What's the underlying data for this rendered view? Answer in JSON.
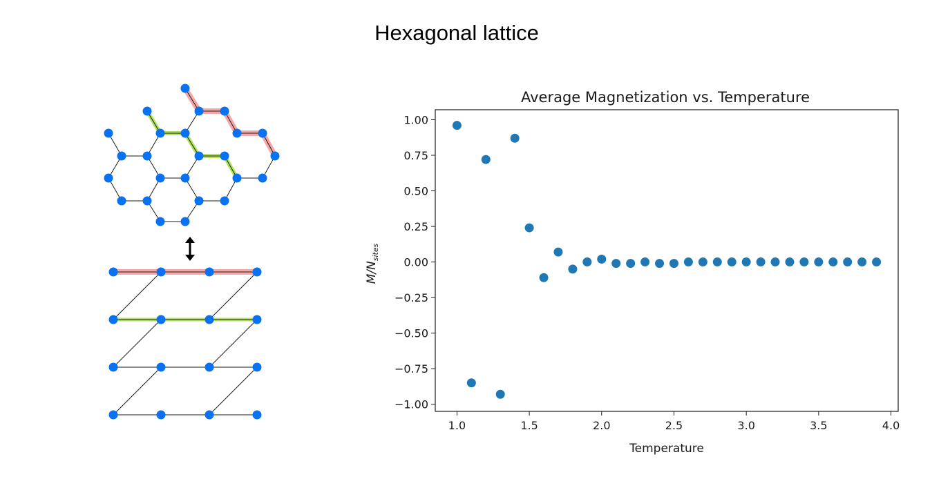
{
  "slide": {
    "title": "Hexagonal lattice"
  },
  "colors": {
    "lattice_node": "#0a72f0",
    "lattice_edge": "#1a1a1a",
    "path_red": "#f08a8a",
    "path_green": "#a8e04a",
    "scatter_point": "#1f77b4",
    "axis": "#1a1a1a"
  },
  "diagram": {
    "arrow_icon": "up-down-arrow-icon"
  },
  "chart_data": {
    "type": "scatter",
    "title": "Average Magnetization vs. Temperature",
    "xlabel": "Temperature",
    "ylabel": "M/N",
    "ylabel_sub": "sites",
    "xlim": [
      0.85,
      4.05
    ],
    "ylim": [
      -1.05,
      1.07
    ],
    "xticks": [
      1.0,
      1.5,
      2.0,
      2.5,
      3.0,
      3.5,
      4.0
    ],
    "xtick_labels": [
      "1.0",
      "1.5",
      "2.0",
      "2.5",
      "3.0",
      "3.5",
      "4.0"
    ],
    "yticks": [
      1.0,
      0.75,
      0.5,
      0.25,
      0.0,
      -0.25,
      -0.5,
      -0.75,
      -1.0
    ],
    "ytick_labels": [
      "1.00",
      "0.75",
      "0.50",
      "0.25",
      "0.00",
      "−0.25",
      "−0.50",
      "−0.75",
      "−1.00"
    ],
    "grid": false,
    "x": [
      1.0,
      1.1,
      1.2,
      1.3,
      1.4,
      1.5,
      1.6,
      1.7,
      1.8,
      1.9,
      2.0,
      2.1,
      2.2,
      2.3,
      2.4,
      2.5,
      2.6,
      2.7,
      2.8,
      2.9,
      3.0,
      3.1,
      3.2,
      3.3,
      3.4,
      3.5,
      3.6,
      3.7,
      3.8,
      3.9
    ],
    "y": [
      0.96,
      -0.85,
      0.72,
      -0.93,
      0.87,
      0.24,
      -0.11,
      0.07,
      -0.05,
      0.0,
      0.02,
      -0.01,
      -0.01,
      0.0,
      -0.01,
      -0.01,
      0.0,
      0.0,
      0.0,
      0.0,
      0.0,
      0.0,
      0.0,
      0.0,
      0.0,
      0.0,
      0.0,
      0.0,
      0.0,
      0.0
    ]
  }
}
